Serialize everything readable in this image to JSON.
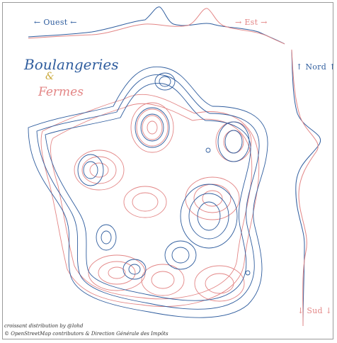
{
  "map": {
    "title_main": "Boulangeries",
    "title_amp": "&",
    "title_sub": "Fermes",
    "colors": {
      "boulangeries": "#2f5d9e",
      "fermes": "#e38686"
    }
  },
  "axes": {
    "west": "← Ouest ←",
    "east": "→ Est →",
    "north": "↑ Nord ↑",
    "south": "↓ Sud ↓"
  },
  "credits": {
    "line1": "croissant distribution by @lohd",
    "line2": "© OpenStreetMap contributors & Direction Générale des Impôts"
  }
}
